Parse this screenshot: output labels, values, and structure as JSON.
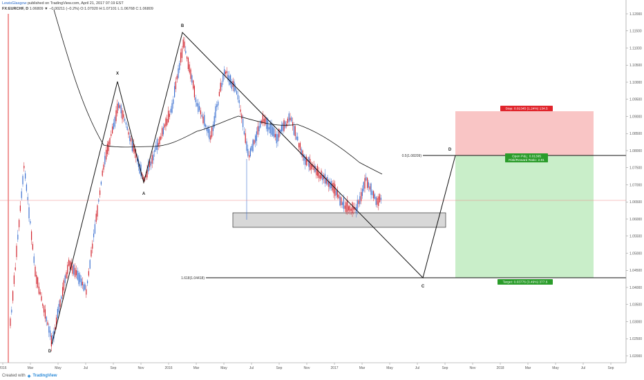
{
  "header": {
    "author": "LewisGlasgow",
    "published": "published on TradingView.com, April 21, 2017 07:19 EST",
    "symbol": "FX:EURCHF, D",
    "ohlc": "1.06809 ▼ −0.00211 (−0.2%) O:1.07020 H:1.07101 L:1.06768 C:1.06809"
  },
  "footer": {
    "created_with": "Created with",
    "brand": "TradingView"
  },
  "colors": {
    "bull": "#3a6fd0",
    "bear": "#d0202a",
    "line": "#111111",
    "stop_zone": "#f9c5c5",
    "target_zone": "#c9eec9",
    "stop_tag": "#e0242b",
    "target_tag": "#2a9c2a"
  },
  "chart_data": {
    "type": "candlestick",
    "x_tick_labels": [
      "2016",
      "Mar",
      "May",
      "Jul",
      "Sep",
      "Nov",
      "2016",
      "Mar",
      "May",
      "Jul",
      "Sep",
      "Nov",
      "2017",
      "Mar",
      "May",
      "Jul",
      "Sep",
      "Nov",
      "2018",
      "Mar",
      "May",
      "Jul",
      "Sep"
    ],
    "y_tick_labels": [
      "1.12000",
      "1.11500",
      "1.11000",
      "1.10500",
      "1.10000",
      "1.09500",
      "1.09000",
      "1.08500",
      "1.08000",
      "1.07500",
      "1.07000",
      "1.06500",
      "1.06000",
      "1.05500",
      "1.05000",
      "1.04500",
      "1.04000",
      "1.03500",
      "1.03000",
      "1.02500",
      "1.02000"
    ],
    "ylim": [
      1.017,
      1.125
    ],
    "current_price": "1.06809",
    "pattern_points": [
      {
        "label": "X",
        "price": 1.1055
      },
      {
        "label": "A",
        "price": 1.0735
      },
      {
        "label": "B",
        "price": 1.12
      },
      {
        "label": "C",
        "price": 1.0442
      },
      {
        "label": "D",
        "price": 1.0821
      },
      {
        "label": "D",
        "price": 1.0225
      }
    ],
    "fib_levels": [
      {
        "label": "0.5(1.08209)",
        "price": 1.08209
      },
      {
        "label": "1.618(1.04418)",
        "price": 1.04418
      }
    ],
    "position": {
      "stop_text": "Stop: 0.01345 (1.24%) 134.5",
      "pnl_text": "Open P&L: 0.01395",
      "rr_text": "Risk/Reward Ratio: 2.81",
      "target_text": "Target: 0.03776 (3.49%) 377.6",
      "stop_price": "1.09549",
      "entry_price": "1.08204",
      "target_price": "1.04428"
    }
  }
}
